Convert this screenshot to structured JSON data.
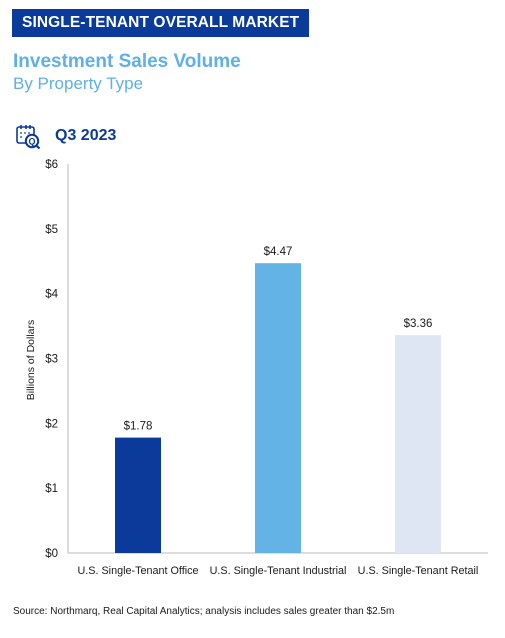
{
  "header": {
    "banner": "SINGLE-TENANT OVERALL MARKET",
    "title": "Investment Sales Volume",
    "subtitle": "By Property Type",
    "period": "Q3 2023"
  },
  "colors": {
    "banner_bg": "#0a3a9a",
    "title": "#5fb0e6",
    "office": "#0a3a9a",
    "industrial": "#63b3e5",
    "retail": "#dde6f2"
  },
  "icons": {
    "period": "calendar-search-icon"
  },
  "chart_data": {
    "type": "bar",
    "categories": [
      "U.S. Single-Tenant Office",
      "U.S. Single-Tenant Industrial",
      "U.S. Single-Tenant Retail"
    ],
    "values": [
      1.78,
      4.47,
      3.36
    ],
    "data_labels": [
      "$1.78",
      "$4.47",
      "$3.36"
    ],
    "ylabel": "Billions of Dollars",
    "ylim": [
      0,
      6
    ],
    "yticks": [
      0,
      1,
      2,
      3,
      4,
      5,
      6
    ],
    "ytick_labels": [
      "$0",
      "$1",
      "$2",
      "$3",
      "$4",
      "$5",
      "$6"
    ],
    "grid": false,
    "bar_colors": [
      "#0a3a9a",
      "#63b3e5",
      "#dde6f2"
    ]
  },
  "footer": {
    "source": "Source: Northmarq, Real Capital Analytics; analysis includes sales greater than $2.5m"
  }
}
